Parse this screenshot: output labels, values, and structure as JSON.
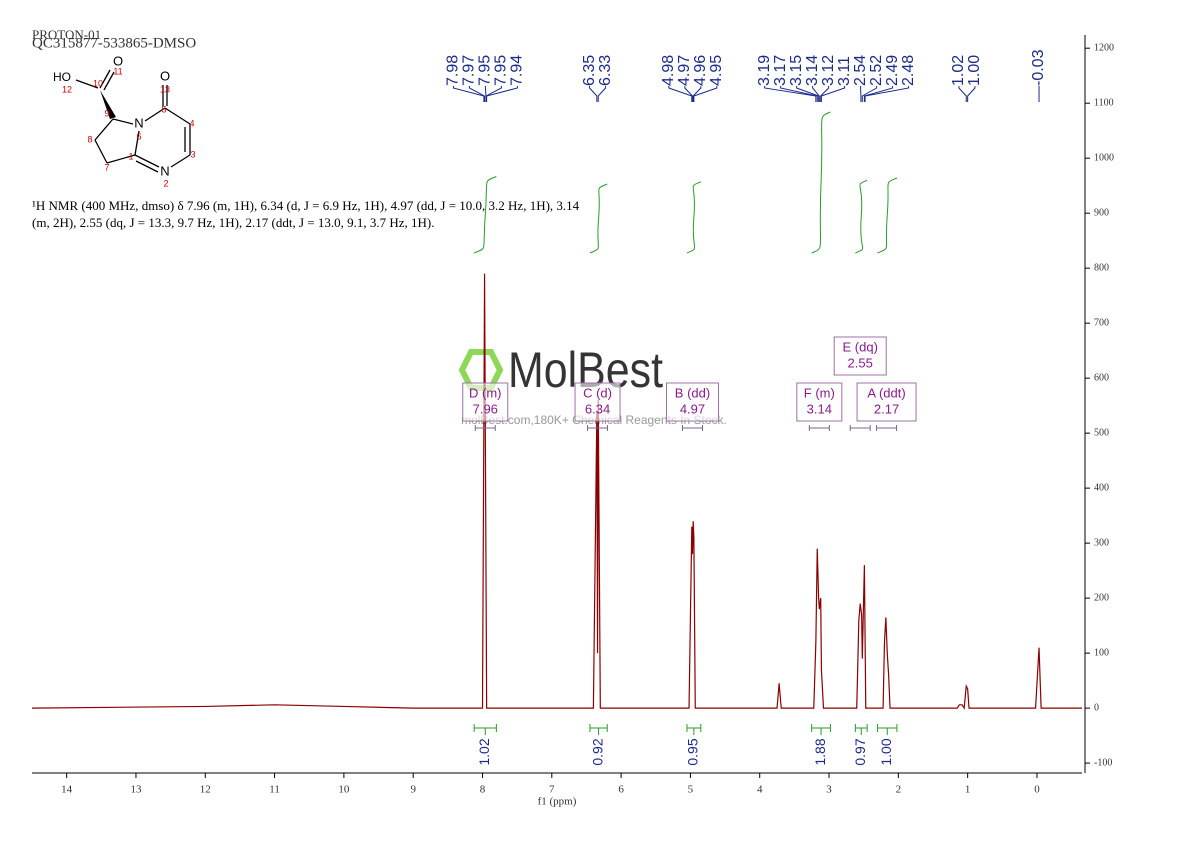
{
  "chart_data": {
    "type": "line",
    "title": "PROTON-01",
    "subtitle": "QC315877-533865-DMSO",
    "x_label": "f1 (ppm)",
    "xlim": [
      14.5,
      -0.65
    ],
    "xticks": [
      14,
      13,
      12,
      11,
      10,
      9,
      8,
      7,
      6,
      5,
      4,
      3,
      2,
      1,
      0
    ],
    "ylim": [
      -118,
      1224
    ],
    "yticks": [
      -100,
      0,
      100,
      200,
      300,
      400,
      500,
      600,
      700,
      800,
      900,
      1000,
      1100,
      1200
    ],
    "color": "#8b0000",
    "x": [
      14.5,
      12,
      11,
      10,
      9,
      8.2,
      8.0,
      7.97,
      7.94,
      6.4,
      6.35,
      6.34,
      6.33,
      6.3,
      5.02,
      4.98,
      4.97,
      4.96,
      4.95,
      4.93,
      3.75,
      3.72,
      3.69,
      3.22,
      3.19,
      3.17,
      3.15,
      3.14,
      3.12,
      3.11,
      3.08,
      2.6,
      2.57,
      2.55,
      2.53,
      2.52,
      2.49,
      2.47,
      2.22,
      2.2,
      2.18,
      2.16,
      2.14,
      2.12,
      1.15,
      1.12,
      1.08,
      1.05,
      1.02,
      1.0,
      0.98,
      0.02,
      -0.03,
      -0.06,
      -0.65
    ],
    "values": [
      0,
      3,
      6,
      3,
      0,
      0,
      0,
      790,
      0,
      0,
      540,
      100,
      560,
      0,
      0,
      330,
      280,
      340,
      310,
      0,
      0,
      45,
      0,
      0,
      120,
      290,
      200,
      180,
      200,
      70,
      0,
      0,
      160,
      190,
      170,
      90,
      260,
      0,
      0,
      120,
      165,
      100,
      60,
      0,
      0,
      6,
      6,
      0,
      40,
      35,
      0,
      0,
      110,
      0,
      0
    ],
    "peak_labels": {
      "values": [
        7.98,
        7.97,
        7.95,
        7.95,
        7.94,
        6.35,
        6.33,
        4.98,
        4.97,
        4.96,
        4.95,
        3.19,
        3.17,
        3.15,
        3.14,
        3.12,
        3.11,
        2.54,
        2.52,
        2.49,
        2.48,
        1.02,
        1.0,
        -0.03
      ],
      "value_labels": [
        "7.98",
        "7.97",
        "7.95",
        "7.95",
        "7.94",
        "6.35",
        "6.33",
        "4.98",
        "4.97",
        "4.96",
        "4.95",
        "3.19",
        "3.17",
        "3.15",
        "3.14",
        "3.12",
        "3.11",
        "2.54",
        "2.52",
        "2.49",
        "2.48",
        "1.02",
        "1.00",
        "-0.03"
      ]
    },
    "integrals": {
      "ranges": [
        [
          8.12,
          7.8
        ],
        [
          6.45,
          6.2
        ],
        [
          5.05,
          4.85
        ],
        [
          3.25,
          2.98
        ],
        [
          2.62,
          2.45
        ],
        [
          2.3,
          2.02
        ]
      ],
      "values": [
        1.02,
        0.92,
        0.95,
        1.88,
        0.97,
        1.0
      ],
      "value_labels": [
        "1.02",
        "0.92",
        "0.95",
        "1.88",
        "0.97",
        "1.00"
      ]
    },
    "multiplets": [
      {
        "name": "D (m)",
        "shift": 7.96
      },
      {
        "name": "C (d)",
        "shift": 6.34
      },
      {
        "name": "B (dd)",
        "shift": 4.97
      },
      {
        "name": "F (m)",
        "shift": 3.14
      },
      {
        "name": "E (dq)",
        "shift": 2.55
      },
      {
        "name": "A (ddt)",
        "shift": 2.17
      }
    ],
    "description": [
      "¹H NMR (400 MHz, dmso) δ 7.96 (m, 1H), 6.34 (d, J = 6.9 Hz, 1H), 4.97 (dd, J = 10.0, 3.2 Hz, 1H), 3.14",
      "(m, 2H), 2.55 (dq, J = 13.3, 9.7 Hz, 1H), 2.17 (ddt, J = 13.0, 9.1, 3.7 Hz, 1H)."
    ],
    "structure_labels": [
      "HO",
      "12",
      "10",
      "O",
      "11",
      "13",
      "O",
      "9",
      "N",
      "6",
      "5",
      "4",
      "8",
      "1",
      "3",
      "7",
      "N",
      "2"
    ],
    "watermark": "MolBest",
    "watermark_note": "molBest.com,180K+ Chemical Reagents In Stock."
  }
}
